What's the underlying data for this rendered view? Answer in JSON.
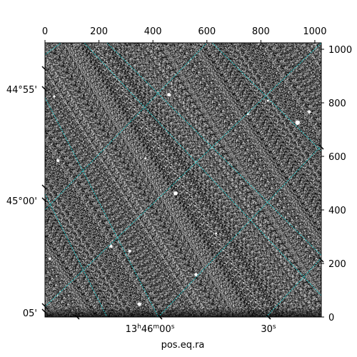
{
  "chart_data": {
    "type": "image",
    "description_style": "astronomical image with WCS grid overlay",
    "xlabel": "pos.eq.ra",
    "pixel_axes": {
      "x": {
        "lim": [
          0,
          1024
        ],
        "ticks": [
          0,
          200,
          400,
          600,
          800,
          1000
        ]
      },
      "y": {
        "lim": [
          0,
          1024
        ],
        "ticks": [
          0,
          200,
          400,
          600,
          800,
          1000
        ]
      }
    },
    "world_ticks": {
      "left": [
        "44°55'",
        "45°00'",
        "05'"
      ],
      "bottom": [
        {
          "hours": "13",
          "minutes": "46",
          "seconds": "00"
        },
        {
          "seconds_only": "30"
        }
      ]
    },
    "grid": true,
    "grid_color": "#20c8c8",
    "colormap": "gray",
    "bright_sources": [
      [
        460,
        830,
        2.5
      ],
      [
        936,
        726,
        3.2
      ],
      [
        980,
        766,
        2.2
      ],
      [
        48,
        584,
        2.0
      ],
      [
        484,
        462,
        2.8
      ],
      [
        245,
        264,
        2.0
      ],
      [
        314,
        246,
        2.0
      ],
      [
        18,
        218,
        1.8
      ],
      [
        560,
        158,
        2.2
      ],
      [
        350,
        48,
        2.6
      ],
      [
        752,
        758,
        1.5
      ],
      [
        826,
        808,
        1.5
      ],
      [
        34,
        824,
        1.6
      ],
      [
        634,
        312,
        1.4
      ],
      [
        372,
        592,
        1.4
      ]
    ]
  }
}
